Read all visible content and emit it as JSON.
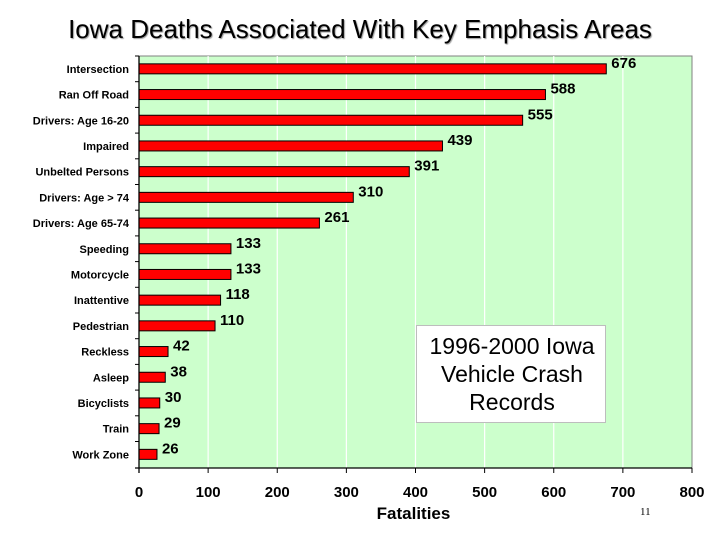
{
  "slide": {
    "title": "Iowa Deaths Associated With Key Emphasis Areas",
    "callout_text": "1996-2000 Iowa\nVehicle Crash\nRecords",
    "slide_number": "11"
  },
  "colors": {
    "plot_background": "#ccffcc",
    "bar_fill": "#ff0000",
    "bar_stroke": "#000000",
    "gridline": "#ffffff"
  },
  "chart_data": {
    "type": "bar",
    "orientation": "horizontal",
    "title": "Iowa Deaths Associated With Key Emphasis Areas",
    "xlabel": "Fatalities",
    "ylabel": "",
    "xlim": [
      0,
      800
    ],
    "xticks": [
      "0",
      "100",
      "200",
      "300",
      "400",
      "500",
      "600",
      "700",
      "800"
    ],
    "grid": "vertical",
    "categories": [
      "Intersection",
      "Ran Off Road",
      "Drivers:  Age 16-20",
      "Impaired",
      "Unbelted Persons",
      "Drivers:  Age > 74",
      "Drivers:  Age 65-74",
      "Speeding",
      "Motorcycle",
      "Inattentive",
      "Pedestrian",
      "Reckless",
      "Asleep",
      "Bicyclists",
      "Train",
      "Work Zone"
    ],
    "values": [
      676,
      588,
      555,
      439,
      391,
      310,
      261,
      133,
      133,
      118,
      110,
      42,
      38,
      30,
      29,
      26
    ],
    "data_labels": [
      "676",
      "588",
      "555",
      "439",
      "391",
      "310",
      "261",
      "133",
      "133",
      "118",
      "110",
      "42",
      "38",
      "30",
      "29",
      "26"
    ]
  }
}
